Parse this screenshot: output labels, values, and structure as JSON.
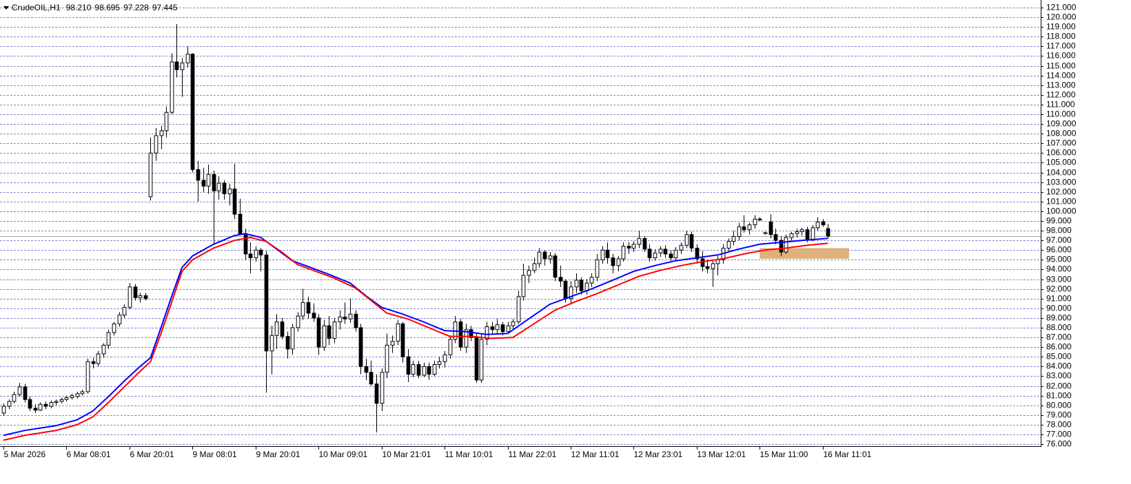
{
  "chart_data": {
    "type": "candlestick",
    "title": "CrudeOIL,H1",
    "header_values": [
      {
        "value": 98.21,
        "label": "98.210"
      },
      {
        "value": 98.695,
        "label": "98.695"
      },
      {
        "value": 97.228,
        "label": "97.228"
      },
      {
        "value": 97.445,
        "label": "97.445"
      }
    ],
    "xlim": [
      -0.66,
      197.5
    ],
    "ylim": [
      75.79,
      121.78
    ],
    "grid": true,
    "up_color": "#ffffff",
    "down_color": "#000000",
    "price_line_color": "#a0a0a0",
    "xticks": [
      {
        "value": 0,
        "label": "5 Mar 2026"
      },
      {
        "value": 12,
        "label": "6 Mar 08:01"
      },
      {
        "value": 24,
        "label": "6 Mar 20:01"
      },
      {
        "value": 36,
        "label": "9 Mar 08:01"
      },
      {
        "value": 48,
        "label": "9 Mar 20:01"
      },
      {
        "value": 60,
        "label": "10 Mar 09:01"
      },
      {
        "value": 72,
        "label": "10 Mar 21:01"
      },
      {
        "value": 84,
        "label": "11 Mar 10:01"
      },
      {
        "value": 96,
        "label": "11 Mar 22:01"
      },
      {
        "value": 108,
        "label": "12 Mar 11:01"
      },
      {
        "value": 120,
        "label": "12 Mar 23:01"
      },
      {
        "value": 132,
        "label": "13 Mar 12:01"
      },
      {
        "value": 144,
        "label": "15 Mar 11:00"
      },
      {
        "value": 156,
        "label": "16 Mar 11:01"
      }
    ],
    "yticks": [
      {
        "value": 76,
        "label": "76.000"
      },
      {
        "value": 77,
        "label": "77.000"
      },
      {
        "value": 78,
        "label": "78.000"
      },
      {
        "value": 79,
        "label": "79.000"
      },
      {
        "value": 80,
        "label": "80.000"
      },
      {
        "value": 81,
        "label": "81.000"
      },
      {
        "value": 82,
        "label": "82.000"
      },
      {
        "value": 83,
        "label": "83.000"
      },
      {
        "value": 84,
        "label": "84.000"
      },
      {
        "value": 85,
        "label": "85.000"
      },
      {
        "value": 86,
        "label": "86.000"
      },
      {
        "value": 87,
        "label": "87.000"
      },
      {
        "value": 88,
        "label": "88.000"
      },
      {
        "value": 89,
        "label": "89.000"
      },
      {
        "value": 90,
        "label": "90.000"
      },
      {
        "value": 91,
        "label": "91.000"
      },
      {
        "value": 92,
        "label": "92.000"
      },
      {
        "value": 93,
        "label": "93.000"
      },
      {
        "value": 94,
        "label": "94.000"
      },
      {
        "value": 95,
        "label": "95.000"
      },
      {
        "value": 96,
        "label": "96.000"
      },
      {
        "value": 97,
        "label": "97.000"
      },
      {
        "value": 98,
        "label": "98.000"
      },
      {
        "value": 99,
        "label": "99.000"
      },
      {
        "value": 100,
        "label": "100.000"
      },
      {
        "value": 101,
        "label": "101.000"
      },
      {
        "value": 102,
        "label": "102.000"
      },
      {
        "value": 103,
        "label": "103.000"
      },
      {
        "value": 104,
        "label": "104.000"
      },
      {
        "value": 105,
        "label": "105.000"
      },
      {
        "value": 106,
        "label": "106.000"
      },
      {
        "value": 107,
        "label": "107.000"
      },
      {
        "value": 108,
        "label": "108.000"
      },
      {
        "value": 109,
        "label": "109.000"
      },
      {
        "value": 110,
        "label": "110.000"
      },
      {
        "value": 111,
        "label": "111.000"
      },
      {
        "value": 112,
        "label": "112.000"
      },
      {
        "value": 113,
        "label": "113.000"
      },
      {
        "value": 114,
        "label": "114.000"
      },
      {
        "value": 115,
        "label": "115.000"
      },
      {
        "value": 116,
        "label": "116.000"
      },
      {
        "value": 117,
        "label": "117.000"
      },
      {
        "value": 118,
        "label": "118.000"
      },
      {
        "value": 119,
        "label": "119.000"
      },
      {
        "value": 120,
        "label": "120.000"
      },
      {
        "value": 121,
        "label": "121.000"
      }
    ],
    "ohlc": [
      [
        79.2,
        80.2,
        78.9,
        79.9
      ],
      [
        79.9,
        80.6,
        79.6,
        80.4
      ],
      [
        80.4,
        81.4,
        80.2,
        81.1
      ],
      [
        81.1,
        82.3,
        80.9,
        81.9
      ],
      [
        81.9,
        82.2,
        80.3,
        80.6
      ],
      [
        80.6,
        80.9,
        79.4,
        79.7
      ],
      [
        79.7,
        80.1,
        79.2,
        79.5
      ],
      [
        79.5,
        80.3,
        79.4,
        80.1
      ],
      [
        80.1,
        80.4,
        79.6,
        79.9
      ],
      [
        79.9,
        80.5,
        79.7,
        80.3
      ],
      [
        80.3,
        80.6,
        80.0,
        80.4
      ],
      [
        80.4,
        80.8,
        80.2,
        80.6
      ],
      [
        80.6,
        81.0,
        80.4,
        80.8
      ],
      [
        80.8,
        81.2,
        80.6,
        81.0
      ],
      [
        80.9,
        81.4,
        80.7,
        81.2
      ],
      [
        81.2,
        81.6,
        81.0,
        81.4
      ],
      [
        81.4,
        84.8,
        81.2,
        84.5
      ],
      [
        84.5,
        84.9,
        83.8,
        84.3
      ],
      [
        84.3,
        85.6,
        84.0,
        85.3
      ],
      [
        85.3,
        86.4,
        84.9,
        86.2
      ],
      [
        86.2,
        87.8,
        85.8,
        87.5
      ],
      [
        87.5,
        88.6,
        87.2,
        88.4
      ],
      [
        88.4,
        89.6,
        88.1,
        89.3
      ],
      [
        89.3,
        90.4,
        89.0,
        90.1
      ],
      [
        90.1,
        92.6,
        89.9,
        92.2
      ],
      [
        92.2,
        92.5,
        90.8,
        91.1
      ],
      [
        91.1,
        91.6,
        90.6,
        91.3
      ],
      [
        91.3,
        91.6,
        90.8,
        91.0
      ],
      [
        101.5,
        107.6,
        101.1,
        106.0
      ],
      [
        106.0,
        108.6,
        105.2,
        107.8
      ],
      [
        107.8,
        108.8,
        106.4,
        108.3
      ],
      [
        108.3,
        110.8,
        107.6,
        110.2
      ],
      [
        110.2,
        116.3,
        110.0,
        115.4
      ],
      [
        115.4,
        119.3,
        113.8,
        114.6
      ],
      [
        114.6,
        115.8,
        111.8,
        115.3
      ],
      [
        115.3,
        117.0,
        114.8,
        116.2
      ],
      [
        116.2,
        116.3,
        104.0,
        104.3
      ],
      [
        104.3,
        105.2,
        101.0,
        103.2
      ],
      [
        103.2,
        104.5,
        102.0,
        102.6
      ],
      [
        102.6,
        104.8,
        101.8,
        103.8
      ],
      [
        103.8,
        104.2,
        96.6,
        102.1
      ],
      [
        102.1,
        103.6,
        101.2,
        102.9
      ],
      [
        102.9,
        103.2,
        101.2,
        101.8
      ],
      [
        101.8,
        102.8,
        100.6,
        102.3
      ],
      [
        102.3,
        104.9,
        99.2,
        99.7
      ],
      [
        99.7,
        101.3,
        97.8,
        97.6
      ],
      [
        97.6,
        98.2,
        95.0,
        95.6
      ],
      [
        95.6,
        96.8,
        93.6,
        95.2
      ],
      [
        95.2,
        96.4,
        94.8,
        96.0
      ],
      [
        96.0,
        96.2,
        93.8,
        95.5
      ],
      [
        95.5,
        95.9,
        81.3,
        85.6
      ],
      [
        85.6,
        88.2,
        83.2,
        87.2
      ],
      [
        87.2,
        89.4,
        85.8,
        88.6
      ],
      [
        88.6,
        89.0,
        86.8,
        87.1
      ],
      [
        87.1,
        87.6,
        84.8,
        85.8
      ],
      [
        85.8,
        88.4,
        85.2,
        88.0
      ],
      [
        88.0,
        89.6,
        87.6,
        89.2
      ],
      [
        89.2,
        92.0,
        88.8,
        90.6
      ],
      [
        90.6,
        91.2,
        88.9,
        89.5
      ],
      [
        89.5,
        90.5,
        88.6,
        89.0
      ],
      [
        89.0,
        89.4,
        85.2,
        86.0
      ],
      [
        86.0,
        88.8,
        85.6,
        88.2
      ],
      [
        88.2,
        89.2,
        86.2,
        86.9
      ],
      [
        86.9,
        89.0,
        86.4,
        88.6
      ],
      [
        88.6,
        89.8,
        87.8,
        89.1
      ],
      [
        89.1,
        90.6,
        88.4,
        88.9
      ],
      [
        88.9,
        91.0,
        88.5,
        89.4
      ],
      [
        89.4,
        89.8,
        87.6,
        88.0
      ],
      [
        88.0,
        88.4,
        83.2,
        84.0
      ],
      [
        84.0,
        84.8,
        82.6,
        83.4
      ],
      [
        83.4,
        84.6,
        82.0,
        82.2
      ],
      [
        82.2,
        83.2,
        77.2,
        80.2
      ],
      [
        80.2,
        83.8,
        79.4,
        83.4
      ],
      [
        83.4,
        87.4,
        82.8,
        86.2
      ],
      [
        86.2,
        87.2,
        85.4,
        86.6
      ],
      [
        86.6,
        88.8,
        86.2,
        88.4
      ],
      [
        88.4,
        88.6,
        84.4,
        85.0
      ],
      [
        85.0,
        85.8,
        82.4,
        83.2
      ],
      [
        83.2,
        84.6,
        82.9,
        84.2
      ],
      [
        84.2,
        84.6,
        82.8,
        83.1
      ],
      [
        83.1,
        84.4,
        82.9,
        84.0
      ],
      [
        84.0,
        84.4,
        82.6,
        83.2
      ],
      [
        83.2,
        84.6,
        83.0,
        84.2
      ],
      [
        84.2,
        85.0,
        83.8,
        84.5
      ],
      [
        84.5,
        85.6,
        83.9,
        85.2
      ],
      [
        85.2,
        87.2,
        84.8,
        86.8
      ],
      [
        86.8,
        89.2,
        86.4,
        88.6
      ],
      [
        88.6,
        88.9,
        85.6,
        86.0
      ],
      [
        86.0,
        88.4,
        85.4,
        87.8
      ],
      [
        87.8,
        88.2,
        86.6,
        87.0
      ],
      [
        87.0,
        87.4,
        82.3,
        82.6
      ],
      [
        82.6,
        87.4,
        82.3,
        86.8
      ],
      [
        86.8,
        88.6,
        86.2,
        88.1
      ],
      [
        88.1,
        88.6,
        87.4,
        87.8
      ],
      [
        87.8,
        88.9,
        87.4,
        88.3
      ],
      [
        88.3,
        88.6,
        87.2,
        87.6
      ],
      [
        87.6,
        88.6,
        87.4,
        88.2
      ],
      [
        88.2,
        88.9,
        87.8,
        88.6
      ],
      [
        88.6,
        91.8,
        88.4,
        91.2
      ],
      [
        91.2,
        94.6,
        90.8,
        93.4
      ],
      [
        93.4,
        94.4,
        92.6,
        93.9
      ],
      [
        93.9,
        95.2,
        93.6,
        94.6
      ],
      [
        94.6,
        96.2,
        94.2,
        95.8
      ],
      [
        95.8,
        96.0,
        94.4,
        95.1
      ],
      [
        95.1,
        95.8,
        94.6,
        95.4
      ],
      [
        95.4,
        95.7,
        92.8,
        93.2
      ],
      [
        93.2,
        94.4,
        92.2,
        92.8
      ],
      [
        92.8,
        93.0,
        90.6,
        91.0
      ],
      [
        91.0,
        92.8,
        90.4,
        92.2
      ],
      [
        92.2,
        93.6,
        91.6,
        92.9
      ],
      [
        92.9,
        93.2,
        91.4,
        91.8
      ],
      [
        91.8,
        93.0,
        91.4,
        92.6
      ],
      [
        92.6,
        93.6,
        92.2,
        93.2
      ],
      [
        93.2,
        95.6,
        92.8,
        95.0
      ],
      [
        95.0,
        96.4,
        94.6,
        96.0
      ],
      [
        96.0,
        96.8,
        94.6,
        95.2
      ],
      [
        95.2,
        95.6,
        93.6,
        94.4
      ],
      [
        94.4,
        95.4,
        93.8,
        95.1
      ],
      [
        95.1,
        96.8,
        94.8,
        96.4
      ],
      [
        96.4,
        96.8,
        95.6,
        96.2
      ],
      [
        96.2,
        96.9,
        95.8,
        96.6
      ],
      [
        96.6,
        98.0,
        96.2,
        97.2
      ],
      [
        97.2,
        97.4,
        95.8,
        96.1
      ],
      [
        96.1,
        96.6,
        94.8,
        95.2
      ],
      [
        95.2,
        96.1,
        94.9,
        95.7
      ],
      [
        95.7,
        96.4,
        95.3,
        96.1
      ],
      [
        96.1,
        96.5,
        95.2,
        95.6
      ],
      [
        95.6,
        96.0,
        94.9,
        95.2
      ],
      [
        95.2,
        96.3,
        94.9,
        96.0
      ],
      [
        96.0,
        96.8,
        95.6,
        96.5
      ],
      [
        96.5,
        98.0,
        96.2,
        97.6
      ],
      [
        97.6,
        97.9,
        95.8,
        96.2
      ],
      [
        96.2,
        96.6,
        94.6,
        95.1
      ],
      [
        95.1,
        95.9,
        93.8,
        94.3
      ],
      [
        94.3,
        95.0,
        93.6,
        94.1
      ],
      [
        94.1,
        94.9,
        92.2,
        94.6
      ],
      [
        94.6,
        95.4,
        93.4,
        95.0
      ],
      [
        95.0,
        96.6,
        94.6,
        96.2
      ],
      [
        96.2,
        97.2,
        95.8,
        96.9
      ],
      [
        96.9,
        98.0,
        96.5,
        97.4
      ],
      [
        97.4,
        98.8,
        97.0,
        98.4
      ],
      [
        98.4,
        99.6,
        97.8,
        98.1
      ],
      [
        98.1,
        98.8,
        97.6,
        98.6
      ],
      [
        98.6,
        99.6,
        98.2,
        99.2
      ],
      [
        99.2,
        99.4,
        99.0,
        99.1
      ],
      [
        97.7,
        97.9,
        97.6,
        97.8
      ],
      [
        98.9,
        99.7,
        97.2,
        97.6
      ],
      [
        97.6,
        98.2,
        96.6,
        97.0
      ],
      [
        97.0,
        97.4,
        95.4,
        95.8
      ],
      [
        95.8,
        97.6,
        95.6,
        97.3
      ],
      [
        97.3,
        97.9,
        97.0,
        97.7
      ],
      [
        97.7,
        98.2,
        97.3,
        97.9
      ],
      [
        97.9,
        98.3,
        97.5,
        98.1
      ],
      [
        98.1,
        98.4,
        96.8,
        97.1
      ],
      [
        97.1,
        98.6,
        96.9,
        98.3
      ],
      [
        98.3,
        99.4,
        98.0,
        98.9
      ],
      [
        98.9,
        99.2,
        98.4,
        98.6
      ],
      [
        98.21,
        98.695,
        97.228,
        97.445
      ]
    ],
    "series": [
      {
        "color": "#0000ff",
        "x": [
          0,
          4,
          10,
          14,
          17,
          20,
          23,
          26,
          28,
          30,
          32,
          34,
          36,
          40,
          44,
          46,
          49,
          52,
          55,
          58,
          62,
          66,
          69,
          72,
          76,
          80,
          84,
          88,
          92,
          96,
          100,
          104,
          108,
          112,
          116,
          120,
          124,
          128,
          132,
          136,
          140,
          144,
          148,
          152,
          157
        ],
        "values": [
          76.9,
          77.4,
          77.9,
          78.5,
          79.4,
          80.9,
          82.5,
          84.0,
          84.9,
          88.0,
          91.2,
          94.2,
          95.4,
          96.6,
          97.5,
          97.7,
          97.3,
          96.1,
          94.9,
          94.3,
          93.5,
          92.6,
          91.3,
          90.1,
          89.4,
          88.6,
          87.7,
          87.6,
          87.3,
          87.4,
          88.9,
          90.4,
          91.2,
          92.0,
          92.9,
          93.8,
          94.4,
          94.9,
          95.2,
          95.5,
          96.1,
          96.6,
          96.8,
          97.0,
          97.2
        ]
      },
      {
        "color": "#ff0000",
        "x": [
          0,
          4,
          10,
          14,
          17,
          20,
          23,
          26,
          28,
          30,
          32,
          34,
          36,
          40,
          44,
          47,
          50,
          53,
          56,
          59,
          63,
          67,
          70,
          73,
          77,
          81,
          85,
          89,
          93,
          97,
          101,
          105,
          109,
          113,
          117,
          121,
          125,
          129,
          133,
          137,
          141,
          145,
          149,
          153,
          157
        ],
        "values": [
          76.4,
          76.9,
          77.4,
          78.0,
          78.8,
          80.3,
          81.9,
          83.5,
          84.5,
          87.4,
          90.6,
          93.8,
          95.0,
          96.2,
          97.0,
          97.3,
          96.9,
          95.8,
          94.5,
          93.9,
          93.1,
          92.1,
          90.8,
          89.5,
          88.9,
          88.0,
          87.1,
          87.1,
          86.9,
          87.0,
          88.4,
          89.8,
          90.7,
          91.5,
          92.4,
          93.3,
          93.9,
          94.4,
          94.8,
          95.1,
          95.6,
          96.0,
          96.2,
          96.5,
          96.7
        ]
      }
    ],
    "zone": {
      "x": [
        144,
        161
      ],
      "y": [
        95.1,
        96.2
      ],
      "color": "#deb07c"
    }
  }
}
